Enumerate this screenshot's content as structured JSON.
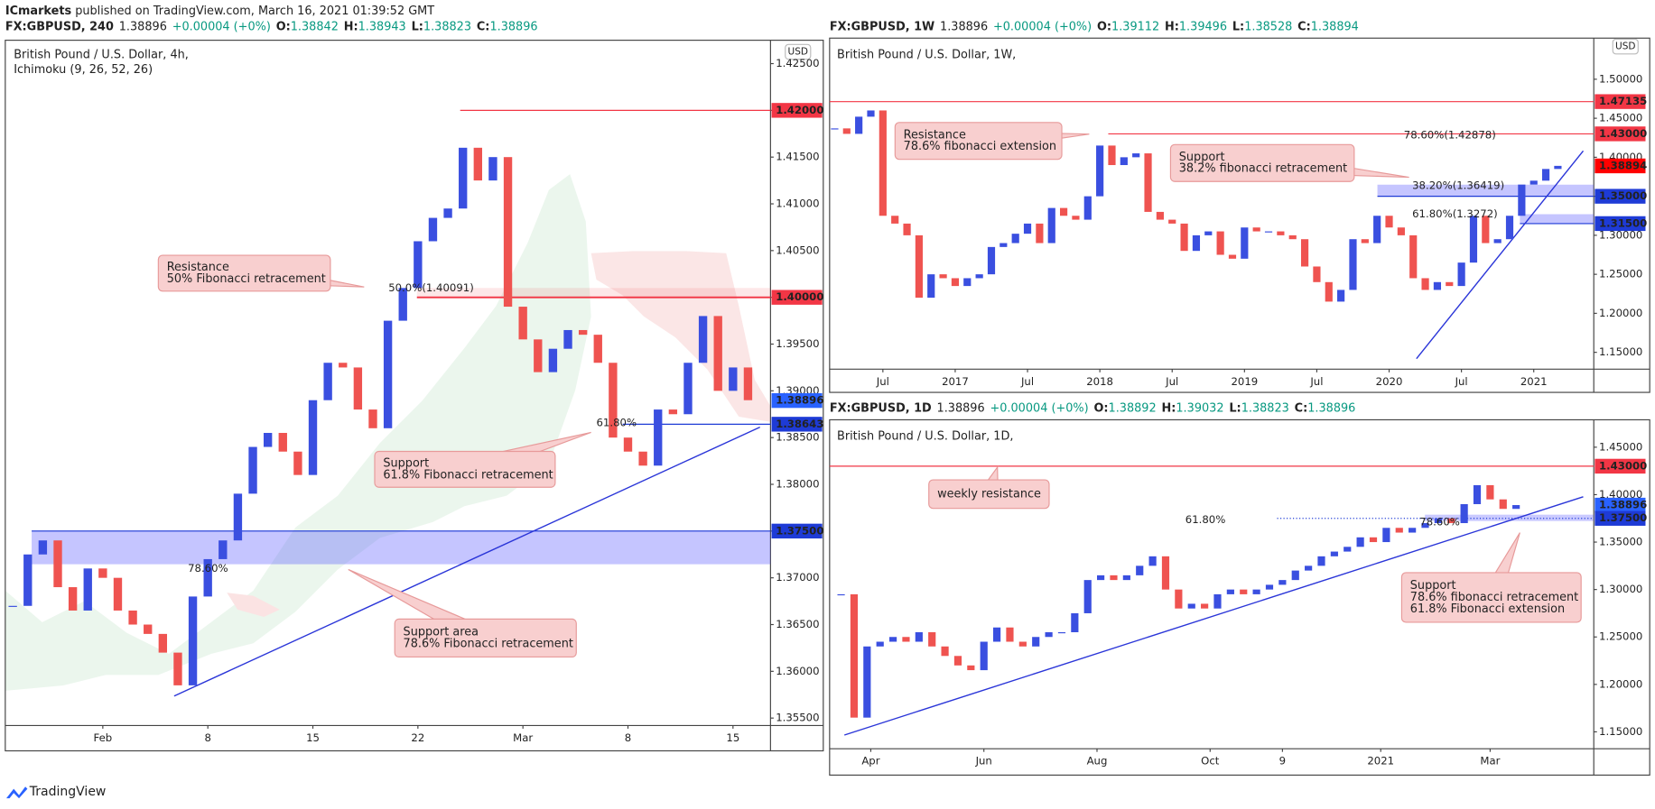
{
  "page": {
    "publisher": "ICmarkets",
    "published": "published on TradingView.com, March 16, 2021 01:39:52 GMT",
    "brand": "TradingView"
  },
  "chart_data": [
    {
      "type": "candlestick",
      "header": {
        "symbol": "FX:GBPUSD, 240",
        "last": "1.38896",
        "change": "+0.00004 (+0%)",
        "ohlc": [
          [
            "O:",
            "1.38842"
          ],
          [
            "H:",
            "1.38943"
          ],
          [
            "L:",
            "1.38823"
          ],
          [
            "C:",
            "1.38896"
          ]
        ]
      },
      "title": "British Pound / U.S. Dollar, 4h,",
      "subtitle": "Ichimoku (9, 26, 52, 26)",
      "currency": "USD",
      "x": [
        0,
        1,
        2,
        3,
        4,
        5,
        6,
        7,
        8,
        9,
        10,
        11,
        12,
        13,
        14,
        15,
        16,
        17,
        18,
        19,
        20,
        21,
        22,
        23,
        24,
        25,
        26,
        27,
        28,
        29,
        30,
        31,
        32,
        33,
        34,
        35,
        36,
        37,
        38,
        39,
        40,
        41,
        42,
        43,
        44,
        45,
        46,
        47,
        48,
        49
      ],
      "values": [
        1.367,
        1.3725,
        1.374,
        1.369,
        1.3665,
        1.371,
        1.37,
        1.3665,
        1.365,
        1.364,
        1.362,
        1.3585,
        1.368,
        1.372,
        1.374,
        1.379,
        1.384,
        1.3855,
        1.3835,
        1.381,
        1.389,
        1.393,
        1.3925,
        1.388,
        1.386,
        1.3975,
        1.401,
        1.406,
        1.4085,
        1.4095,
        1.416,
        1.4125,
        1.415,
        1.399,
        1.3955,
        1.392,
        1.3945,
        1.3965,
        1.396,
        1.393,
        1.385,
        1.3835,
        1.382,
        1.388,
        1.3875,
        1.393,
        1.398,
        1.39,
        1.3925,
        1.389
      ],
      "up_color": "#3a4fe0",
      "down_color": "#ef5350",
      "xlim": [
        -0.5,
        50.5
      ],
      "xticks": [
        {
          "value": 6,
          "label": "Feb"
        },
        {
          "value": 13,
          "label": "8"
        },
        {
          "value": 20,
          "label": "15"
        },
        {
          "value": 27,
          "label": "22"
        },
        {
          "value": 34,
          "label": "Mar"
        },
        {
          "value": 41,
          "label": "8"
        },
        {
          "value": 48,
          "label": "15"
        }
      ],
      "ylim": [
        1.3542,
        1.4275
      ],
      "yticks": [
        {
          "value": 1.355,
          "label": "1.35500"
        },
        {
          "value": 1.36,
          "label": "1.36000"
        },
        {
          "value": 1.365,
          "label": "1.36500"
        },
        {
          "value": 1.37,
          "label": "1.37000"
        },
        {
          "value": 1.375,
          "label": "1.37500"
        },
        {
          "value": 1.38,
          "label": "1.38000"
        },
        {
          "value": 1.385,
          "label": "1.38500"
        },
        {
          "value": 1.39,
          "label": "1.39000"
        },
        {
          "value": 1.395,
          "label": "1.39500"
        },
        {
          "value": 1.4,
          "label": "1.40000"
        },
        {
          "value": 1.405,
          "label": "1.40500"
        },
        {
          "value": 1.41,
          "label": "1.41000"
        },
        {
          "value": 1.415,
          "label": "1.41500"
        },
        {
          "value": 1.42,
          "label": "1.42000"
        },
        {
          "value": 1.425,
          "label": "1.42500"
        }
      ],
      "levels": [
        {
          "value": 1.42,
          "label": "1.42000",
          "color": "#f23645"
        },
        {
          "value": 1.4,
          "label": "1.40000",
          "color": "#f23645"
        },
        {
          "value": 1.38896,
          "label": "1.38896",
          "color": "#2962ff"
        },
        {
          "value": 1.38643,
          "label": "1.38643",
          "color": "#1e3bd6"
        },
        {
          "value": 1.375,
          "label": "1.37500",
          "color": "#1e3bd6"
        }
      ],
      "fib_labels": [
        "50.0%(1.40091)",
        "61.80%",
        "78.60%"
      ],
      "annotations": [
        {
          "lines": [
            "Resistance",
            "50% Fibonacci retracement"
          ]
        },
        {
          "lines": [
            "Support",
            "61.8% Fibonacci retracement"
          ]
        },
        {
          "lines": [
            "Support area",
            "78.6% Fibonacci retracement"
          ]
        }
      ]
    },
    {
      "type": "candlestick",
      "header": {
        "symbol": "FX:GBPUSD, 1W",
        "last": "1.38896",
        "change": "+0.00004 (+0%)",
        "ohlc": [
          [
            "O:",
            "1.39112"
          ],
          [
            "H:",
            "1.39496"
          ],
          [
            "L:",
            "1.38528"
          ],
          [
            "C:",
            "1.38894"
          ]
        ]
      },
      "title": "British Pound / U.S. Dollar, 1W,",
      "currency": "USD",
      "x": [
        2,
        3,
        4,
        5,
        6,
        7,
        8,
        9,
        10,
        11,
        12,
        13,
        14,
        15,
        16,
        17,
        18,
        19,
        20,
        21,
        22,
        23,
        24,
        25,
        26,
        27,
        28,
        29,
        30,
        31,
        32,
        33,
        34,
        35,
        36,
        37,
        38,
        39,
        40,
        41,
        42,
        43,
        44,
        45,
        46,
        47,
        48,
        49,
        50,
        51,
        52,
        53,
        54,
        55,
        56,
        57,
        58,
        59,
        60,
        61,
        62
      ],
      "values": [
        1.437,
        1.43,
        1.452,
        1.46,
        1.325,
        1.315,
        1.3,
        1.22,
        1.25,
        1.245,
        1.235,
        1.245,
        1.25,
        1.285,
        1.29,
        1.302,
        1.315,
        1.29,
        1.335,
        1.325,
        1.32,
        1.35,
        1.415,
        1.39,
        1.4,
        1.405,
        1.33,
        1.32,
        1.315,
        1.28,
        1.3,
        1.305,
        1.275,
        1.27,
        1.31,
        1.305,
        1.305,
        1.3,
        1.295,
        1.26,
        1.24,
        1.215,
        1.23,
        1.295,
        1.29,
        1.325,
        1.31,
        1.3,
        1.245,
        1.23,
        1.24,
        1.235,
        1.265,
        1.325,
        1.29,
        1.295,
        1.325,
        1.365,
        1.37,
        1.385,
        1.389
      ],
      "up_color": "#3a4fe0",
      "down_color": "#ef5350",
      "xlim": [
        1.58,
        64.98
      ],
      "xticks": [
        {
          "value": 6,
          "label": "Jul"
        },
        {
          "value": 12,
          "label": "2017"
        },
        {
          "value": 18,
          "label": "Jul"
        },
        {
          "value": 24,
          "label": "2018"
        },
        {
          "value": 30,
          "label": "Jul"
        },
        {
          "value": 36,
          "label": "2019"
        },
        {
          "value": 42,
          "label": "Jul"
        },
        {
          "value": 48,
          "label": "2020"
        },
        {
          "value": 54,
          "label": "Jul"
        },
        {
          "value": 60,
          "label": "2021"
        }
      ],
      "ylim": [
        1.1284,
        1.5527
      ],
      "yticks": [
        {
          "value": 1.15,
          "label": "1.15000"
        },
        {
          "value": 1.2,
          "label": "1.20000"
        },
        {
          "value": 1.25,
          "label": "1.25000"
        },
        {
          "value": 1.3,
          "label": "1.30000"
        },
        {
          "value": 1.35,
          "label": "1.35000"
        },
        {
          "value": 1.4,
          "label": "1.40000"
        },
        {
          "value": 1.45,
          "label": "1.45000"
        },
        {
          "value": 1.5,
          "label": "1.50000"
        }
      ],
      "levels": [
        {
          "value": 1.47135,
          "label": "1.47135",
          "color": "#f23645"
        },
        {
          "value": 1.43,
          "label": "1.43000",
          "color": "#f23645"
        },
        {
          "value": 1.38894,
          "label": "1.38894",
          "color": "#ff0000"
        },
        {
          "value": 1.35,
          "label": "1.35000",
          "color": "#1e3bd6"
        },
        {
          "value": 1.315,
          "label": "1.31500",
          "color": "#1e3bd6"
        }
      ],
      "fib_labels": [
        "78.60%(1.42878)",
        "38.20%(1.36419)",
        "61.80%(1.3272)"
      ],
      "annotations": [
        {
          "lines": [
            "Resistance",
            "78.6% fibonacci extension"
          ]
        },
        {
          "lines": [
            "Support",
            "38.2% fibonacci retracement"
          ]
        }
      ]
    },
    {
      "type": "candlestick",
      "header": {
        "symbol": "FX:GBPUSD, 1D",
        "last": "1.38896",
        "change": "+0.00004 (+0%)",
        "ohlc": [
          [
            "O:",
            "1.38892"
          ],
          [
            "H:",
            "1.39032"
          ],
          [
            "L:",
            "1.38823"
          ],
          [
            "C:",
            "1.38896"
          ]
        ]
      },
      "title": "British Pound / U.S. Dollar, 1D,",
      "x": [
        0,
        7,
        14,
        21,
        28,
        35,
        42,
        49,
        56,
        63,
        70,
        77,
        84,
        91,
        98,
        105,
        112,
        119,
        126,
        133,
        140,
        147,
        154,
        161,
        168,
        175,
        182,
        189,
        196,
        203,
        210,
        217,
        224,
        231,
        238,
        245,
        252,
        259,
        266,
        273,
        280,
        287,
        294,
        301,
        308,
        315,
        322,
        329,
        336,
        343,
        350,
        357,
        364
      ],
      "values": [
        1.295,
        1.165,
        1.24,
        1.245,
        1.25,
        1.245,
        1.255,
        1.24,
        1.23,
        1.22,
        1.215,
        1.245,
        1.26,
        1.245,
        1.24,
        1.25,
        1.255,
        1.255,
        1.275,
        1.31,
        1.315,
        1.31,
        1.315,
        1.325,
        1.335,
        1.3,
        1.28,
        1.285,
        1.28,
        1.295,
        1.3,
        1.295,
        1.3,
        1.305,
        1.31,
        1.32,
        1.325,
        1.335,
        1.34,
        1.345,
        1.355,
        1.35,
        1.365,
        1.36,
        1.365,
        1.37,
        1.375,
        1.37,
        1.39,
        1.41,
        1.395,
        1.385,
        1.389
      ],
      "up_color": "#3a4fe0",
      "down_color": "#ef5350",
      "xlim": [
        -6.2,
        405.9
      ],
      "xticks": [
        {
          "value": 16,
          "label": "Apr"
        },
        {
          "value": 77,
          "label": "Jun"
        },
        {
          "value": 138,
          "label": "Aug"
        },
        {
          "value": 199,
          "label": "Oct"
        },
        {
          "value": 238,
          "label": "9"
        },
        {
          "value": 291,
          "label": "2021"
        },
        {
          "value": 350,
          "label": "Mar"
        }
      ],
      "ylim": [
        1.1322,
        1.4789
      ],
      "yticks": [
        {
          "value": 1.15,
          "label": "1.15000"
        },
        {
          "value": 1.2,
          "label": "1.20000"
        },
        {
          "value": 1.25,
          "label": "1.25000"
        },
        {
          "value": 1.3,
          "label": "1.30000"
        },
        {
          "value": 1.35,
          "label": "1.35000"
        },
        {
          "value": 1.4,
          "label": "1.40000"
        },
        {
          "value": 1.45,
          "label": "1.45000"
        }
      ],
      "levels": [
        {
          "value": 1.43,
          "label": "1.43000",
          "color": "#f23645"
        },
        {
          "value": 1.38896,
          "label": "1.38896",
          "color": "#2962ff"
        },
        {
          "value": 1.375,
          "label": "1.37500",
          "color": "#1e3bd6"
        }
      ],
      "fib_labels": [
        "61.80%",
        "78.60%"
      ],
      "annotations": [
        {
          "lines": [
            "weekly resistance"
          ]
        },
        {
          "lines": [
            "Support",
            "78.6% fibonacci retracement",
            "61.8% Fibonacci extension"
          ]
        }
      ]
    }
  ]
}
